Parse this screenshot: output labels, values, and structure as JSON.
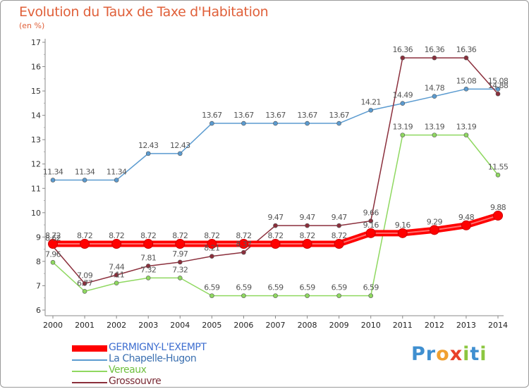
{
  "title": "Evolution du Taux de Taxe d'Habitation",
  "unit_label": "(en %)",
  "logo": {
    "text": "Proxiti",
    "letters": [
      "P",
      "r",
      "o",
      "x",
      "i",
      "t",
      "i"
    ],
    "colors": [
      "#3f8fd0",
      "#3f8fd0",
      "#f0a030",
      "#e8402a",
      "#8cc640",
      "#3f8fd0",
      "#8cc640"
    ]
  },
  "chart_data": {
    "type": "line",
    "x": [
      "2000",
      "2001",
      "2002",
      "2003",
      "2004",
      "2005",
      "2006",
      "2007",
      "2008",
      "2009",
      "2010",
      "2011",
      "2012",
      "2013",
      "2014"
    ],
    "yticks": [
      "6",
      "7",
      "8",
      "9",
      "10",
      "11",
      "12",
      "13",
      "14",
      "15",
      "16",
      "17"
    ],
    "ylim": [
      6,
      17
    ],
    "grid": false,
    "legend_position": "bottom-left",
    "series": [
      {
        "name": "La Chapelle-Hugon",
        "color": "#5b9bd0",
        "emphasis": false,
        "values": [
          11.34,
          11.34,
          11.34,
          12.43,
          12.43,
          13.67,
          13.67,
          13.67,
          13.67,
          13.67,
          14.21,
          14.49,
          14.78,
          15.08,
          15.08
        ],
        "labels": [
          "11.34",
          "11.34",
          "11.34",
          "12.43",
          "12.43",
          "13.67",
          "13.67",
          "13.67",
          "13.67",
          "13.67",
          "14.21",
          "14.49",
          "14.78",
          "15.08",
          "15.08"
        ]
      },
      {
        "name": "Vereaux",
        "color": "#8fd860",
        "emphasis": false,
        "values": [
          7.96,
          6.77,
          7.11,
          7.32,
          7.32,
          6.59,
          6.59,
          6.59,
          6.59,
          6.59,
          6.59,
          13.19,
          13.19,
          13.19,
          11.55
        ],
        "labels": [
          "7.96",
          "6.77",
          "7.11",
          "7.32",
          "7.32",
          "6.59",
          "6.59",
          "6.59",
          "6.59",
          "6.59",
          "6.59",
          "13.19",
          "13.19",
          "13.19",
          "11.55"
        ]
      },
      {
        "name": "Grossouvre",
        "color": "#8b2f3c",
        "emphasis": false,
        "values": [
          8.62,
          7.09,
          7.44,
          7.81,
          7.97,
          8.21,
          8.37,
          9.47,
          9.47,
          9.47,
          9.66,
          16.36,
          16.36,
          16.36,
          14.88
        ],
        "labels": [
          "8.62",
          "7.09",
          "7.44",
          "7.81",
          "7.97",
          "8.21",
          "8.37",
          "9.47",
          "9.47",
          "9.47",
          "9.66",
          "16.36",
          "16.36",
          "16.36",
          "14.88"
        ]
      },
      {
        "name": "GERMIGNY-L'EXEMPT",
        "color": "#ff0000",
        "emphasis": true,
        "values": [
          8.72,
          8.72,
          8.72,
          8.72,
          8.72,
          8.72,
          8.72,
          8.72,
          8.72,
          8.72,
          9.16,
          9.16,
          9.29,
          9.48,
          9.88
        ],
        "labels": [
          "8.72",
          "8.72",
          "8.72",
          "8.72",
          "8.72",
          "8.72",
          "8.72",
          "8.72",
          "8.72",
          "8.72",
          "9.16",
          "9.16",
          "9.29",
          "9.48",
          "9.88"
        ]
      }
    ]
  }
}
